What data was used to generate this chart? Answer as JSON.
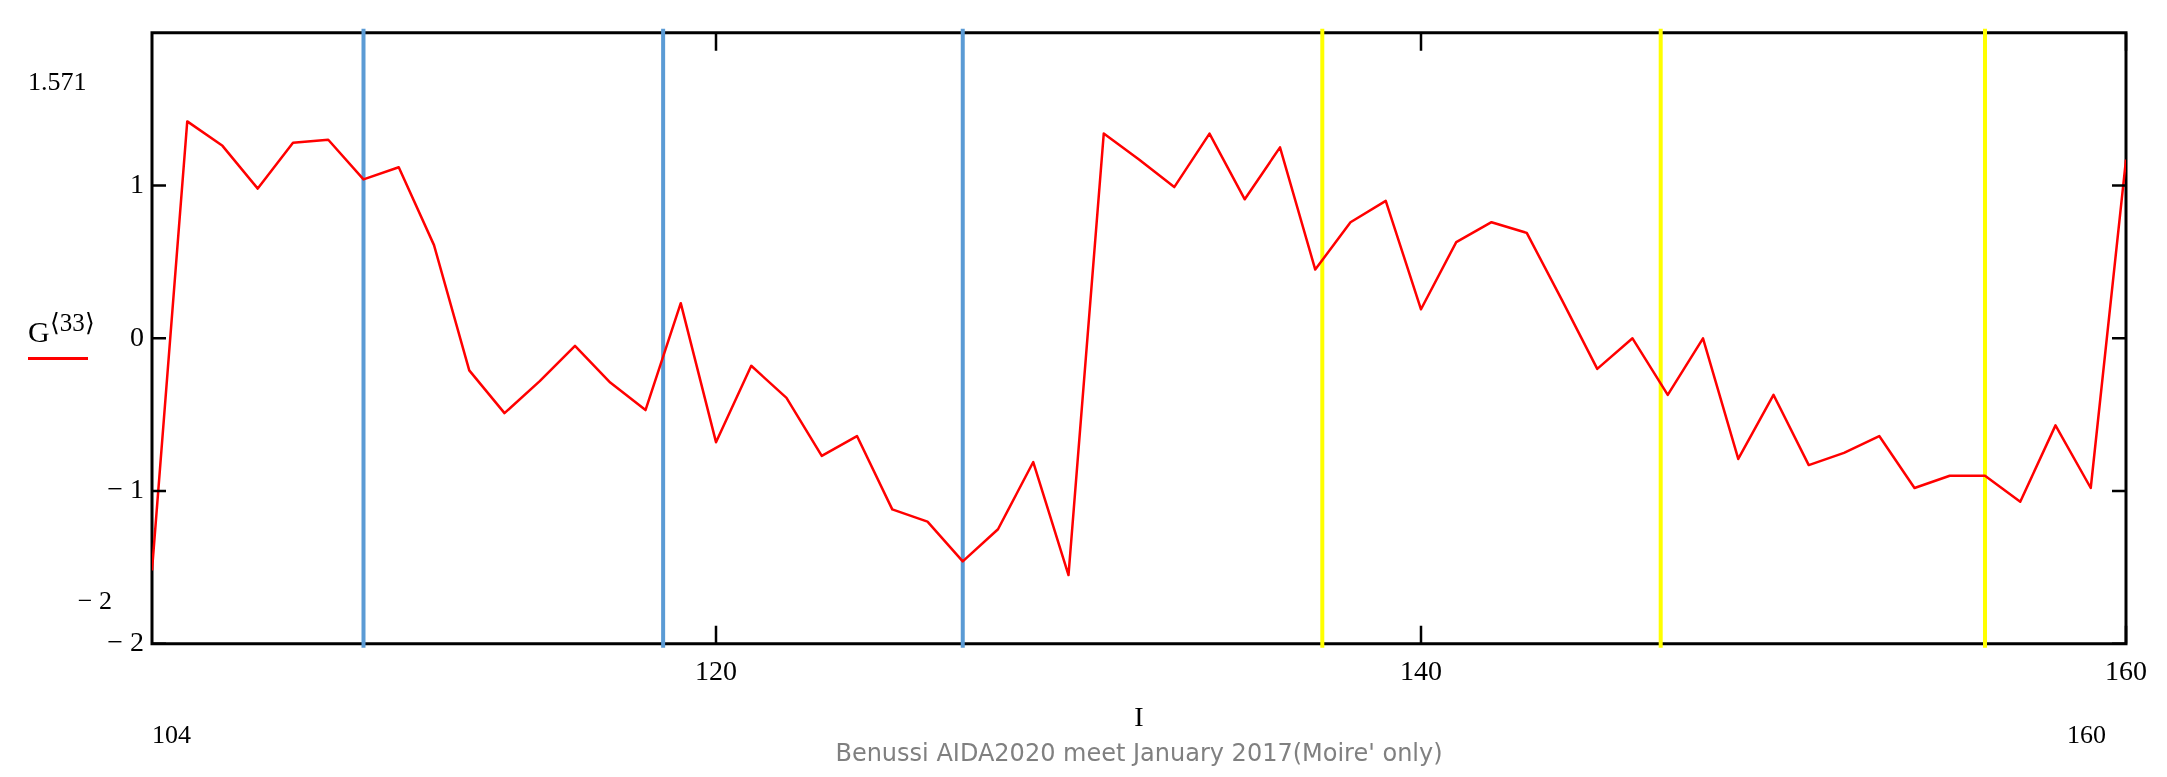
{
  "chart_data": {
    "type": "line",
    "xlabel": "I",
    "x": [
      104,
      105,
      106,
      107,
      108,
      109,
      110,
      111,
      112,
      113,
      114,
      115,
      116,
      117,
      118,
      119,
      120,
      121,
      122,
      123,
      124,
      125,
      126,
      127,
      128,
      129,
      130,
      131,
      132,
      133,
      134,
      135,
      136,
      137,
      138,
      139,
      140,
      141,
      142,
      143,
      144,
      145,
      146,
      147,
      148,
      149,
      150,
      151,
      152,
      153,
      154,
      155,
      156,
      157,
      158,
      159,
      160
    ],
    "series": [
      {
        "name": "G$^{⟨33⟩}$",
        "color": "#ff0000",
        "values": [
          -1.52,
          1.42,
          1.26,
          0.98,
          1.28,
          1.3,
          1.04,
          1.12,
          0.61,
          -0.21,
          -0.49,
          -0.28,
          -0.05,
          -0.29,
          -0.47,
          0.23,
          -0.68,
          -0.18,
          -0.39,
          -0.77,
          -0.64,
          -1.12,
          -1.2,
          -1.46,
          -1.25,
          -0.81,
          -1.55,
          1.34,
          1.17,
          0.99,
          1.34,
          0.91,
          1.25,
          0.45,
          0.76,
          0.9,
          0.19,
          0.63,
          0.76,
          0.69,
          0.25,
          -0.2,
          0,
          -0.37,
          0,
          -0.79,
          -0.37,
          -0.83,
          -0.75,
          -0.64,
          -0.98,
          -0.9,
          -0.9,
          -1.07,
          -0.57,
          -0.98,
          1.17
        ]
      }
    ],
    "xlim": [
      104,
      160
    ],
    "xticks": [
      120,
      140,
      160
    ],
    "ylim": [
      -2,
      2
    ],
    "yticks": [
      -2,
      -1,
      0,
      1
    ],
    "ref_lines": [
      {
        "axis": "x",
        "value": 110,
        "color": "#5b9bd5"
      },
      {
        "axis": "x",
        "value": 118.5,
        "color": "#5b9bd5"
      },
      {
        "axis": "x",
        "value": 127,
        "color": "#5b9bd5"
      },
      {
        "axis": "x",
        "value": 137.2,
        "color": "#ffff00"
      },
      {
        "axis": "x",
        "value": 146.8,
        "color": "#ffff00"
      },
      {
        "axis": "x",
        "value": 156,
        "color": "#ffff00"
      }
    ],
    "legend": "left",
    "marker": "none",
    "line_style": "solid",
    "annotations": [
      "1.571",
      "− 2",
      "104",
      "160",
      "Benussi AIDA2020 meet January 2017(Moire' only)"
    ]
  }
}
